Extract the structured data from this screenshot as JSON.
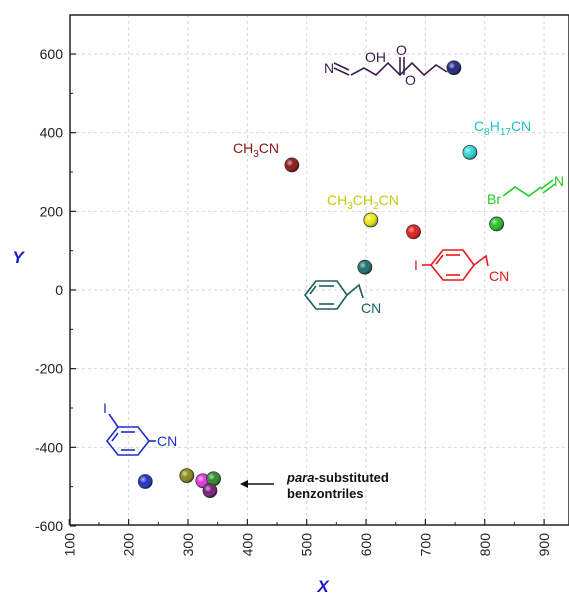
{
  "chart_data": {
    "type": "scatter",
    "xlabel": "X",
    "ylabel": "Y",
    "xlim": [
      100,
      950
    ],
    "ylim": [
      -600,
      700
    ],
    "xticks": [
      "100",
      "200",
      "300",
      "400",
      "500",
      "600",
      "700",
      "800",
      "900"
    ],
    "yticks": [
      "600",
      "400",
      "200",
      "0",
      "-200",
      "-400",
      "-600"
    ],
    "grid": true,
    "points": [
      {
        "x": 748,
        "y": 565,
        "color": "#1a237e"
      },
      {
        "x": 775,
        "y": 350,
        "color": "#30d5d8"
      },
      {
        "x": 475,
        "y": 318,
        "color": "#8b1414"
      },
      {
        "x": 608,
        "y": 178,
        "color": "#e8e816"
      },
      {
        "x": 820,
        "y": 168,
        "color": "#22c022"
      },
      {
        "x": 680,
        "y": 148,
        "color": "#e81818"
      },
      {
        "x": 598,
        "y": 58,
        "color": "#1a6e6e"
      },
      {
        "x": 228,
        "y": -487,
        "color": "#1f2ecc"
      },
      {
        "x": 298,
        "y": -472,
        "color": "#888818"
      },
      {
        "x": 325,
        "y": -485,
        "color": "#e830e8"
      },
      {
        "x": 343,
        "y": -480,
        "color": "#2a8a2a"
      },
      {
        "x": 337,
        "y": -510,
        "color": "#7a1a7a"
      }
    ],
    "labels": {
      "ch3cn_a": "CH",
      "ch3cn_sub": "3",
      "ch3cn_b": "CN",
      "c8_a": "C",
      "c8_sub1": "8",
      "c8_b": "H",
      "c8_sub2": "17",
      "c8_c": "CN",
      "ch3ch2cn_a": "CH",
      "ch3ch2cn_sub1": "3",
      "ch3ch2cn_b": "CH",
      "ch3ch2cn_sub2": "2",
      "ch3ch2cn_c": "CN",
      "bromo_br": "Br",
      "bromo_n": "N",
      "iodo_para_i": "I",
      "iodo_para_cn": "CN",
      "benzyl_cn": "CN",
      "iodo_meta_i": "I",
      "iodo_meta_cn": "CN",
      "ester_n": "N",
      "ester_oh": "OH",
      "ester_o1": "O",
      "ester_o2": "O"
    },
    "annotation": {
      "line1_italic": "para",
      "line1_rest": "-substituted",
      "line2": "benzontriles"
    },
    "colors": {
      "ester": "#3a1f4a",
      "ch3cn": "#8b1414",
      "c8": "#20c0cc",
      "ch3ch2cn": "#c8c810",
      "bromo": "#22cc22",
      "iodo_para": "#e81818",
      "benzyl": "#1a5e5e",
      "iodo_meta": "#1f2ecc",
      "axis_title": "#1a1acc"
    }
  }
}
